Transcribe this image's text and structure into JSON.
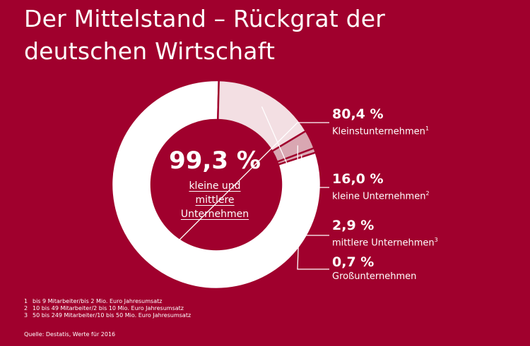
{
  "title": {
    "line1": "Der Mittelstand – Rückgrat der",
    "line2": "deutschen Wirtschaft"
  },
  "center": {
    "value": "99,3 %",
    "label_lines": [
      "kleine und",
      "mittlere",
      "Unternehmen"
    ]
  },
  "colors": {
    "background": "#a0002d",
    "segment_main": "#ffffff",
    "segment_small": "#f3dfe3",
    "segment_medium": "#d9a7b2"
  },
  "chart_data": {
    "type": "pie",
    "title": "Der Mittelstand – Rückgrat der deutschen Wirtschaft",
    "subtype": "donut",
    "categories": [
      "Kleinstunternehmen",
      "kleine Unternehmen",
      "mittlere Unternehmen",
      "Großunternehmen"
    ],
    "values": [
      80.4,
      16.0,
      2.9,
      0.7
    ],
    "value_labels": [
      "80,4 %",
      "16,0 %",
      "2,9 %",
      "0,7 %"
    ],
    "footnote_marks": [
      "1",
      "2",
      "3",
      ""
    ],
    "center_total": 99.3
  },
  "footnotes": [
    {
      "num": "1",
      "text": "bis 9 Mitarbeiter/bis 2 Mio. Euro Jahresumsatz"
    },
    {
      "num": "2",
      "text": "10 bis 49 Mitarbeiter/2 bis 10 Mio. Euro Jahresumsatz"
    },
    {
      "num": "3",
      "text": "50 bis 249 Mitarbeiter/10 bis 50 Mio. Euro Jahresumsatz"
    }
  ],
  "source": "Quelle: Destatis, Werte für 2016"
}
